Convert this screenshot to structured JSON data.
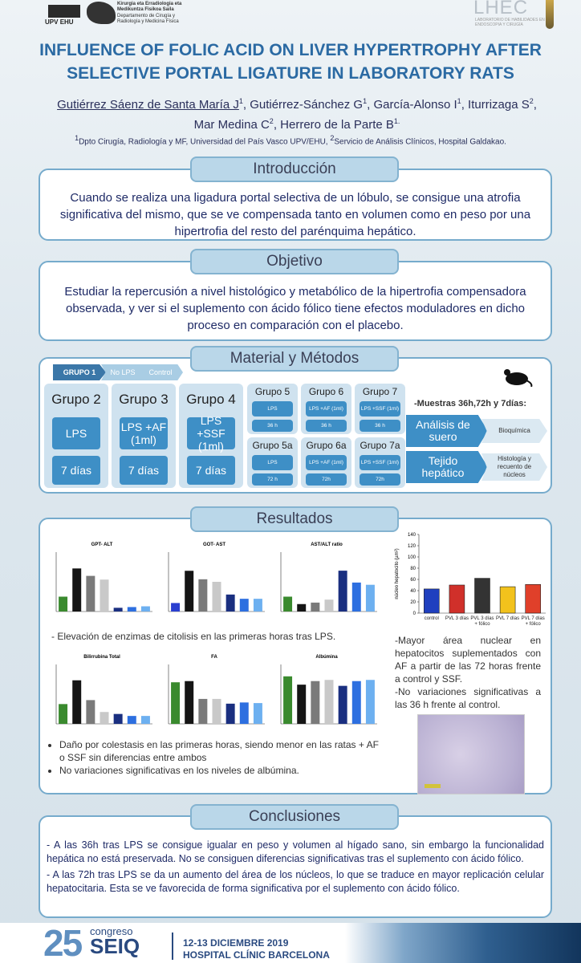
{
  "header": {
    "logo_left": [
      "UPV",
      "EHU"
    ],
    "dept_basque": "Kirurgia eta Erradiologia eta Medikuntza Fisikoa Saila",
    "dept_spanish": "Departamento de Cirugía y Radiología y Medicina Física",
    "logo_right": "LHEC",
    "logo_right_sub": "LABORATORIO DE HABILIDADES EN ENDOSCOPIA Y CIRUGÍA"
  },
  "title": [
    "INFLUENCE OF FOLIC ACID ON LIVER HYPERTROPHY AFTER",
    "SELECTIVE PORTAL LIGATURE IN LABORATORY RATS"
  ],
  "authors": [
    {
      "name": "Gutiérrez Sáenz de Santa María J",
      "sup": "1"
    },
    {
      "name": ", Gutiérrez-Sánchez G",
      "sup": "1"
    },
    {
      "name": ", García-Alonso I",
      "sup": "1"
    },
    {
      "name": ", Iturrizaga S",
      "sup": "2"
    },
    {
      "name": ", Mar Medina C",
      "sup": "2"
    },
    {
      "name": ", Herrero de la Parte B",
      "sup": "1."
    }
  ],
  "affiliation": [
    {
      "sup": "1",
      "text": "Dpto Cirugía, Radiología y MF, Universidad del País Vasco UPV/EHU, "
    },
    {
      "sup": "2",
      "text": "Servicio de Análisis Clínicos, Hospital Galdakao."
    }
  ],
  "intro": {
    "title": "Introducción",
    "text": "Cuando se realiza una ligadura portal selectiva de un lóbulo, se consigue una atrofia significativa  del mismo, que se ve compensada tanto en volumen como en peso por una hipertrofia del resto del parénquima hepático."
  },
  "objective": {
    "title": "Objetivo",
    "text": "Estudiar la repercusión a nivel histológico y metabólico de la hipertrofia compensadora observada, y ver si el suplemento con ácido fólico tiene efectos moduladores en dicho proceso en comparación con el placebo."
  },
  "methods": {
    "title": "Material y Métodos",
    "group1": [
      "GRUPO 1",
      "No LPS",
      "Control"
    ],
    "big_groups": [
      {
        "name": "Grupo 2",
        "items": [
          "LPS",
          "7 días"
        ]
      },
      {
        "name": "Grupo 3",
        "items": [
          "LPS +AF (1ml)",
          "7 días"
        ]
      },
      {
        "name": "Grupo 4",
        "items": [
          "LPS +SSF (1ml)",
          "7 días"
        ]
      }
    ],
    "small_groups": [
      {
        "name": "Grupo 5",
        "items": [
          "LPS",
          "36 h"
        ]
      },
      {
        "name": "Grupo 6",
        "items": [
          "LPS +AF (1ml)",
          "36 h"
        ]
      },
      {
        "name": "Grupo 7",
        "items": [
          "LPS +SSF (1ml)",
          "36 h"
        ]
      },
      {
        "name": "Grupo 5a",
        "items": [
          "LPS",
          "72 h"
        ]
      },
      {
        "name": "Grupo 6a",
        "items": [
          "LPS +AF (1ml)",
          "72h"
        ]
      },
      {
        "name": "Grupo 7a",
        "items": [
          "LPS +SSF (1ml)",
          "72h"
        ]
      }
    ],
    "samples": "-Muestras 36h,72h y 7días:",
    "flows": [
      {
        "from": "Análisis de suero",
        "to": "Bioquímica"
      },
      {
        "from": "Tejido hepático",
        "to": "Histología y recuento de núcleos"
      }
    ]
  },
  "results": {
    "title": "Resultados",
    "charts": [
      {
        "type": "bar",
        "title": "GPT- ALT",
        "values": [
          200,
          580,
          480,
          430,
          50,
          60,
          70
        ],
        "ylim": [
          0,
          800
        ],
        "colors": [
          "#3a8a2e",
          "#151515",
          "#7a7a7a",
          "#c9c9c9",
          "#1a2f80",
          "#2d6fe0",
          "#6db0f0"
        ]
      },
      {
        "type": "bar",
        "title": "GOT- AST",
        "values": [
          100,
          480,
          380,
          350,
          200,
          150,
          150
        ],
        "ylim": [
          0,
          700
        ],
        "colors": [
          "#2a3fd0",
          "#151515",
          "#7a7a7a",
          "#c9c9c9",
          "#1a2f80",
          "#2d6fe0",
          "#6db0f0"
        ]
      },
      {
        "type": "bar",
        "title": "AST/ALT ratio",
        "values": [
          2,
          1,
          1.2,
          1.6,
          5.5,
          3.9,
          3.6
        ],
        "ylim": [
          0,
          8
        ],
        "colors": [
          "#3a8a2e",
          "#151515",
          "#7a7a7a",
          "#c9c9c9",
          "#1a2f80",
          "#2d6fe0",
          "#6db0f0"
        ]
      },
      {
        "type": "bar",
        "title": "Bilirrubina Total",
        "values": [
          0.5,
          1.1,
          0.6,
          0.3,
          0.25,
          0.2,
          0.2
        ],
        "ylim": [
          0,
          1.5
        ],
        "colors": [
          "#3a8a2e",
          "#151515",
          "#7a7a7a",
          "#c9c9c9",
          "#1a2f80",
          "#2d6fe0",
          "#6db0f0"
        ]
      },
      {
        "type": "bar",
        "title": "FA",
        "values": [
          700,
          720,
          420,
          420,
          340,
          360,
          350
        ],
        "ylim": [
          0,
          1000
        ],
        "colors": [
          "#3a8a2e",
          "#151515",
          "#7a7a7a",
          "#c9c9c9",
          "#1a2f80",
          "#2d6fe0",
          "#6db0f0"
        ]
      },
      {
        "type": "bar",
        "title": "Albúmina",
        "values": [
          4.0,
          3.3,
          3.6,
          3.7,
          3.2,
          3.6,
          3.7
        ],
        "ylim": [
          0,
          5
        ],
        "colors": [
          "#3a8a2e",
          "#151515",
          "#7a7a7a",
          "#c9c9c9",
          "#1a2f80",
          "#2d6fe0",
          "#6db0f0"
        ]
      }
    ],
    "nucleus_chart": {
      "type": "bar",
      "ylabel": "núcleo hepatocito (µm²)",
      "categories": [
        "control",
        "PVL 3 días",
        "PVL 3 días + fólico",
        "PVL 7 días",
        "PVL 7 días + fólico"
      ],
      "values": [
        43,
        50,
        62,
        47,
        51
      ],
      "colors": [
        "#1f3fbf",
        "#d0302a",
        "#333333",
        "#f2c21c",
        "#e0402a"
      ],
      "ylim": [
        0,
        140
      ],
      "yticks": [
        0,
        20,
        40,
        60,
        80,
        100,
        120,
        140
      ]
    },
    "enzyme_text": "- Elevación de enzimas de citolisis en las primeras horas tras LPS.",
    "bullets": [
      "Daño por colestasis en las primeras horas, siendo menor en las ratas + AF o SSF sin diferencias entre ambos",
      "No variaciones significativas en los niveles de albúmina."
    ],
    "right_text": [
      "-Mayor área nuclear en hepatocitos suplementados con AF a partir de las 72 horas frente a control y SSF.",
      "-No variaciones significativas a las 36 h frente al control."
    ]
  },
  "conclusions": {
    "title": "Conclusiones",
    "paragraphs": [
      "- A las 36h tras LPS se consigue igualar en peso y volumen al hígado sano, sin embargo la funcionalidad hepática no está preservada. No se consiguen diferencias significativas tras el suplemento con ácido fólico.",
      "- A las 72h tras LPS se da un aumento del área de los núcleos, lo que se traduce en mayor replicación celular hepatocitaria. Esta se ve favorecida de forma significativa por el suplemento con ácido fólico."
    ]
  },
  "footer": {
    "number": "25",
    "word": "congreso",
    "brand": "SEIQ",
    "date": "12-13 DICIEMBRE 2019",
    "place": "HOSPITAL CLÍNIC BARCELONA"
  }
}
